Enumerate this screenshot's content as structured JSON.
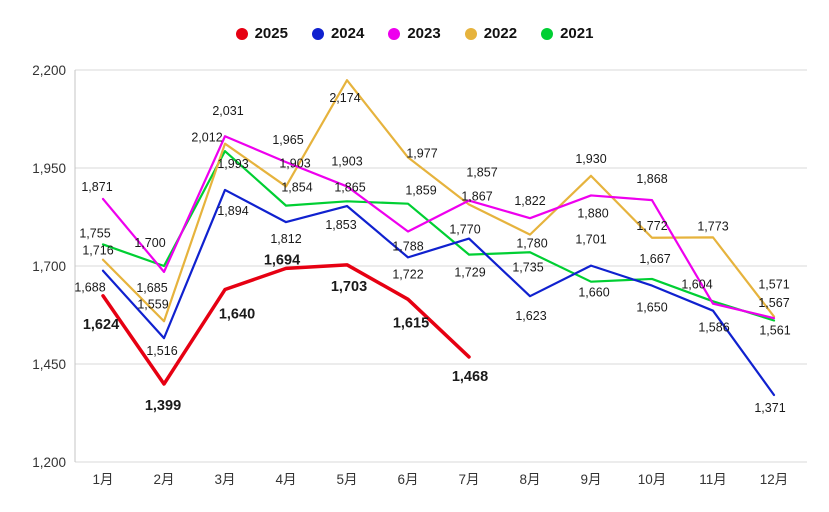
{
  "chart_data": {
    "type": "line",
    "title": "",
    "xlabel": "",
    "ylabel": "",
    "ylim": [
      1200,
      2200
    ],
    "grid": true,
    "legend_position": "top-center",
    "background_color": "#ffffff",
    "grid_color": "#d9d9d9",
    "axis_text_color": "#333333",
    "categories": [
      "1月",
      "2月",
      "3月",
      "4月",
      "5月",
      "6月",
      "7月",
      "8月",
      "9月",
      "10月",
      "11月",
      "12月"
    ],
    "y_ticks": [
      2200,
      1950,
      1700,
      1450,
      1200
    ],
    "y_tick_labels": [
      "2,200",
      "1,950",
      "1,700",
      "1,450",
      "1,200"
    ],
    "series": [
      {
        "name": "2025",
        "color": "#e60012",
        "line_width": 3.5,
        "emphasis": true,
        "values": [
          1624,
          1399,
          1640,
          1694,
          1703,
          1615,
          1468,
          null,
          null,
          null,
          null,
          null
        ],
        "labels": [
          "1,624",
          "1,399",
          "1,640",
          "1,694",
          "1,703",
          "1,615",
          "1,468",
          "",
          "",
          "",
          "",
          ""
        ],
        "label_dx": [
          -2,
          -1,
          12,
          -4,
          2,
          3,
          1,
          0,
          0,
          0,
          0,
          0
        ],
        "label_dy": [
          33,
          26,
          29,
          -4,
          26,
          28,
          24,
          0,
          0,
          0,
          0,
          0
        ]
      },
      {
        "name": "2024",
        "color": "#1021cf",
        "line_width": 2.2,
        "emphasis": false,
        "values": [
          1688,
          1516,
          1894,
          1812,
          1853,
          1722,
          1770,
          1623,
          1701,
          1650,
          1586,
          1371
        ],
        "labels": [
          "1,688",
          "1,516",
          "1,894",
          "1,812",
          "1,853",
          "1,722",
          "1,770",
          "1,623",
          "1,701",
          "1,650",
          "1,586",
          "1,371"
        ],
        "label_dx": [
          -13,
          -2,
          8,
          0,
          -6,
          0,
          -4,
          1,
          0,
          0,
          1,
          -4
        ],
        "label_dy": [
          21,
          17,
          25,
          21,
          23,
          21,
          -5,
          24,
          -22,
          26,
          21,
          17
        ]
      },
      {
        "name": "2023",
        "color": "#ee00ee",
        "line_width": 2.2,
        "emphasis": false,
        "values": [
          1871,
          1685,
          2031,
          1965,
          1903,
          1788,
          1867,
          1822,
          1880,
          1868,
          1604,
          1567
        ],
        "labels": [
          "1,871",
          "1,685",
          "2,031",
          "1,965",
          "1,903",
          "1,788",
          "1,867",
          "1,822",
          "1,880",
          "1,868",
          "1,604",
          "1,567"
        ],
        "label_dx": [
          -6,
          -12,
          3,
          2,
          0,
          0,
          8,
          0,
          2,
          0,
          -16,
          0
        ],
        "label_dy": [
          -8,
          20,
          -21,
          -18,
          -21,
          19,
          0,
          -13,
          22,
          -17,
          -15,
          -11
        ]
      },
      {
        "name": "2022",
        "color": "#e6b33d",
        "line_width": 2.2,
        "emphasis": false,
        "values": [
          1716,
          1559,
          2012,
          1903,
          2174,
          1977,
          1857,
          1780,
          1930,
          1772,
          1773,
          1571
        ],
        "labels": [
          "1,716",
          "1,559",
          "2,012",
          "1,903",
          "2,174",
          "1,977",
          "1,857",
          "1,780",
          "1,930",
          "1,772",
          "1,773",
          "1,571"
        ],
        "label_dx": [
          -5,
          -11,
          -18,
          9,
          -2,
          14,
          13,
          2,
          0,
          0,
          0,
          0
        ],
        "label_dy": [
          -5,
          -13,
          -2,
          -19,
          22,
          0,
          -28,
          13,
          -13,
          -8,
          -7,
          -28
        ]
      },
      {
        "name": "2021",
        "color": "#00cf33",
        "line_width": 2.2,
        "emphasis": false,
        "values": [
          1755,
          1700,
          1993,
          1854,
          1865,
          1859,
          1729,
          1735,
          1660,
          1667,
          1610,
          1561
        ],
        "labels": [
          "1,755",
          "1,700",
          "1,993",
          "1,854",
          "1,865",
          "1,859",
          "1,729",
          "1,735",
          "1,660",
          "1,667",
          "",
          "1,561"
        ],
        "label_dx": [
          -8,
          -14,
          8,
          11,
          3,
          13,
          1,
          -2,
          3,
          3,
          0,
          1
        ],
        "label_dy": [
          -7,
          -19,
          17,
          -14,
          -10,
          -9,
          22,
          19,
          15,
          -16,
          0,
          14
        ]
      }
    ]
  }
}
